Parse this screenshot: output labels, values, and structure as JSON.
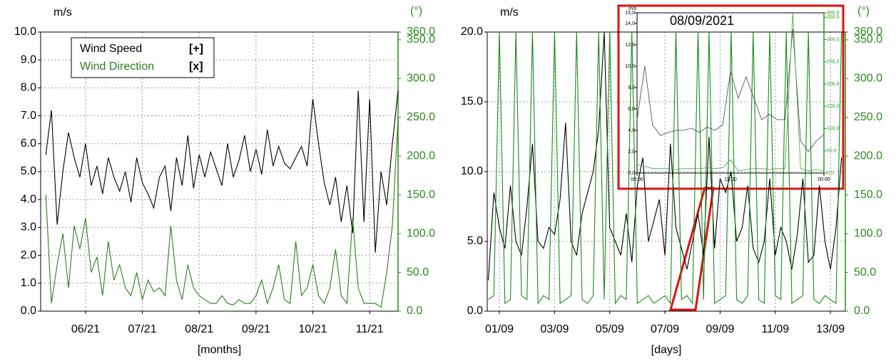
{
  "chart_data": [
    {
      "type": "line",
      "y_unit": "m/s",
      "y2_unit": "(°)",
      "xlabel": "[months]",
      "grid": true,
      "legend": "upper left",
      "x": [
        5.3,
        5.4,
        5.5,
        5.6,
        5.7,
        5.8,
        5.9,
        6.0,
        6.1,
        6.2,
        6.3,
        6.4,
        6.5,
        6.6,
        6.7,
        6.8,
        6.9,
        7.0,
        7.1,
        7.2,
        7.3,
        7.4,
        7.5,
        7.6,
        7.7,
        7.8,
        7.9,
        8.0,
        8.1,
        8.2,
        8.3,
        8.4,
        8.5,
        8.6,
        8.7,
        8.8,
        8.9,
        9.0,
        9.1,
        9.2,
        9.3,
        9.4,
        9.5,
        9.6,
        9.7,
        9.8,
        9.9,
        10.0,
        10.1,
        10.2,
        10.3,
        10.4,
        10.5,
        10.6,
        10.7,
        10.8,
        10.9,
        11.0,
        11.1,
        11.2,
        11.3,
        11.4,
        11.5
      ],
      "xlim": [
        5.21,
        11.5
      ],
      "xticks": [
        {
          "value": 6,
          "label": "06/21"
        },
        {
          "value": 7,
          "label": "07/21"
        },
        {
          "value": 8,
          "label": "08/21"
        },
        {
          "value": 9,
          "label": "09/21"
        },
        {
          "value": 10,
          "label": "10/21"
        },
        {
          "value": 11,
          "label": "11/21"
        }
      ],
      "ylim": [
        0,
        10
      ],
      "yticks": [
        {
          "value": 0,
          "label": "0.0"
        },
        {
          "value": 1,
          "label": "1.0"
        },
        {
          "value": 2,
          "label": "2.0"
        },
        {
          "value": 3,
          "label": "3.0"
        },
        {
          "value": 4,
          "label": "4.0"
        },
        {
          "value": 5,
          "label": "5.0"
        },
        {
          "value": 6,
          "label": "6.0"
        },
        {
          "value": 7,
          "label": "7.0"
        },
        {
          "value": 8,
          "label": "8.0"
        },
        {
          "value": 9,
          "label": "9.0"
        },
        {
          "value": 10,
          "label": "10.0"
        }
      ],
      "y2lim": [
        0,
        360
      ],
      "y2ticks": [
        {
          "value": 0,
          "label": "0.0"
        },
        {
          "value": 50,
          "label": "50.0"
        },
        {
          "value": 100,
          "label": "100.0"
        },
        {
          "value": 150,
          "label": "150.0"
        },
        {
          "value": 200,
          "label": "200.0"
        },
        {
          "value": 250,
          "label": "250.0"
        },
        {
          "value": 300,
          "label": "300.0"
        },
        {
          "value": 350,
          "label": "350.0"
        },
        {
          "value": 360,
          "label": "360.0"
        }
      ],
      "series": [
        {
          "name": "Wind Speed",
          "marker_label": "[+]",
          "color": "#000000",
          "axis": "y",
          "values": [
            5.6,
            7.2,
            3.1,
            5.0,
            6.4,
            5.5,
            4.8,
            6.0,
            4.5,
            5.2,
            4.2,
            5.5,
            4.8,
            4.3,
            5.0,
            3.9,
            5.5,
            4.6,
            4.2,
            3.7,
            4.8,
            5.2,
            3.6,
            5.5,
            4.5,
            6.3,
            4.4,
            5.6,
            4.8,
            5.7,
            5.1,
            4.5,
            6.0,
            4.8,
            5.4,
            6.3,
            5.0,
            5.8,
            4.9,
            6.5,
            5.2,
            5.9,
            5.3,
            5.1,
            5.5,
            5.9,
            5.2,
            7.6,
            6.0,
            4.6,
            3.8,
            4.8,
            3.2,
            4.5,
            2.8,
            7.9,
            3.2,
            7.6,
            2.1,
            5.0,
            3.8,
            6.0,
            7.9
          ]
        },
        {
          "name": "Wind Direction",
          "marker_label": "[x]",
          "color": "#2e7d1e",
          "axis": "y2",
          "values": [
            150,
            10,
            60,
            100,
            30,
            110,
            80,
            120,
            50,
            70,
            20,
            90,
            40,
            60,
            30,
            20,
            50,
            15,
            40,
            25,
            30,
            20,
            110,
            40,
            15,
            60,
            30,
            20,
            15,
            10,
            10,
            20,
            10,
            8,
            15,
            10,
            10,
            20,
            40,
            10,
            30,
            60,
            15,
            10,
            90,
            20,
            30,
            60,
            20,
            10,
            30,
            80,
            20,
            10,
            120,
            30,
            10,
            10,
            10,
            5,
            50,
            110,
            250
          ]
        }
      ]
    },
    {
      "type": "line",
      "y_unit": "m/s",
      "y2_unit": "(°)",
      "xlabel": "[days]",
      "grid": true,
      "x": [
        0.6,
        0.8,
        1.0,
        1.2,
        1.4,
        1.6,
        1.8,
        2.0,
        2.2,
        2.4,
        2.6,
        2.8,
        3.0,
        3.2,
        3.4,
        3.6,
        3.8,
        4.0,
        4.2,
        4.4,
        4.6,
        4.8,
        5.0,
        5.2,
        5.4,
        5.6,
        5.8,
        6.0,
        6.2,
        6.4,
        6.6,
        6.8,
        7.0,
        7.2,
        7.4,
        7.6,
        7.8,
        8.0,
        8.2,
        8.4,
        8.6,
        8.8,
        9.0,
        9.2,
        9.4,
        9.6,
        9.8,
        10.0,
        10.2,
        10.4,
        10.6,
        10.8,
        11.0,
        11.2,
        11.4,
        11.6,
        11.8,
        12.0,
        12.2,
        12.4,
        12.6,
        12.8,
        13.0,
        13.2,
        13.4
      ],
      "xlim": [
        0.56,
        13.54
      ],
      "xticks": [
        {
          "value": 1,
          "label": "01/09"
        },
        {
          "value": 3,
          "label": "03/09"
        },
        {
          "value": 5,
          "label": "05/09"
        },
        {
          "value": 7,
          "label": "07/09"
        },
        {
          "value": 9,
          "label": "09/09"
        },
        {
          "value": 11,
          "label": "11/09"
        },
        {
          "value": 13,
          "label": "13/09"
        }
      ],
      "ylim": [
        0,
        20
      ],
      "yticks": [
        {
          "value": 0,
          "label": "0.0"
        },
        {
          "value": 5,
          "label": "5.0"
        },
        {
          "value": 10,
          "label": "10.0"
        },
        {
          "value": 15,
          "label": "15.0"
        },
        {
          "value": 20,
          "label": "20.0"
        }
      ],
      "y2lim": [
        0,
        360
      ],
      "y2ticks": [
        {
          "value": 0,
          "label": "0.0"
        },
        {
          "value": 50,
          "label": "50.0"
        },
        {
          "value": 100,
          "label": "100.0"
        },
        {
          "value": 150,
          "label": "150.0"
        },
        {
          "value": 200,
          "label": "200.0"
        },
        {
          "value": 250,
          "label": "250.0"
        },
        {
          "value": 300,
          "label": "300.0"
        },
        {
          "value": 350,
          "label": "350.0"
        },
        {
          "value": 360,
          "label": "360.0"
        }
      ],
      "series": [
        {
          "color": "#000000",
          "axis": "y",
          "values": [
            2.2,
            8.5,
            6,
            4.5,
            9,
            5,
            4,
            7.5,
            12,
            5,
            4.5,
            6,
            5.5,
            8,
            13.5,
            5,
            4,
            7,
            8.5,
            10,
            13,
            20,
            6,
            5,
            4,
            7,
            3.5,
            9,
            11,
            5,
            6.5,
            8,
            4,
            12,
            6,
            4.5,
            3,
            5,
            7,
            4,
            12.5,
            4.5,
            9.5,
            8.5,
            10,
            5,
            6,
            9,
            4.5,
            3.5,
            5,
            9.5,
            4,
            6,
            5,
            3,
            5.5,
            9.5,
            3.5,
            4,
            9,
            5,
            3,
            6,
            11
          ]
        },
        {
          "color": "#1a8a1a",
          "axis": "y2",
          "values": [
            15,
            20,
            360,
            10,
            15,
            360,
            20,
            15,
            360,
            10,
            20,
            15,
            360,
            10,
            15,
            20,
            360,
            15,
            10,
            20,
            360,
            15,
            360,
            10,
            20,
            15,
            360,
            10,
            15,
            20,
            10,
            15,
            20,
            10,
            360,
            15,
            20,
            10,
            360,
            15,
            360,
            10,
            15,
            20,
            360,
            15,
            10,
            20,
            360,
            15,
            10,
            360,
            20,
            15,
            360,
            10,
            15,
            20,
            360,
            15,
            10,
            20,
            15,
            10,
            360
          ]
        }
      ]
    },
    {
      "type": "line",
      "title": "08/09/2021",
      "y_unit": "m/s",
      "grid": false,
      "x": [
        0,
        1,
        2,
        3,
        4,
        5,
        6,
        7,
        8,
        9,
        10,
        11,
        12,
        13,
        14,
        15,
        16,
        17,
        18,
        19,
        20,
        21,
        22,
        23,
        24
      ],
      "xlim": [
        0,
        24
      ],
      "xticks": [
        {
          "value": 0,
          "label": "00:00"
        },
        {
          "value": 12,
          "label": "12:00"
        },
        {
          "value": 24,
          "label": "00:00"
        }
      ],
      "ylim": [
        0,
        15
      ],
      "yticks": [
        {
          "value": 0,
          "label": "0,0"
        },
        {
          "value": 2,
          "label": "2,0"
        },
        {
          "value": 4,
          "label": "4,0"
        },
        {
          "value": 6,
          "label": "6,0"
        },
        {
          "value": 8,
          "label": "8,0"
        },
        {
          "value": 10,
          "label": "10,0"
        },
        {
          "value": 12,
          "label": "12,0"
        },
        {
          "value": 14,
          "label": "14,0"
        },
        {
          "value": 15,
          "label": "15,0"
        }
      ],
      "y2lim": [
        0,
        360
      ],
      "y2ticks": [
        {
          "value": 0,
          "label": "0,0"
        },
        {
          "value": 50,
          "label": "50,0"
        },
        {
          "value": 100,
          "label": "100,0"
        },
        {
          "value": 150,
          "label": "150,0"
        },
        {
          "value": 200,
          "label": "200,0"
        },
        {
          "value": 250,
          "label": "250,0"
        },
        {
          "value": 300,
          "label": "300,0"
        },
        {
          "value": 350,
          "label": "350,0"
        },
        {
          "value": 360,
          "label": "360,0"
        }
      ],
      "series": [
        {
          "color": "#444444",
          "axis": "y",
          "values": [
            5,
            10,
            4.5,
            3.5,
            3.8,
            4,
            4,
            4.2,
            3.8,
            4.3,
            4,
            4.5,
            9.5,
            7,
            9,
            7,
            5,
            5.5,
            5,
            5,
            13.5,
            3,
            2,
            3,
            3.6
          ]
        },
        {
          "color": "#3aa83a",
          "axis": "y2",
          "values": [
            20,
            15,
            10,
            10,
            10,
            8,
            10,
            10,
            10,
            12,
            10,
            12,
            30,
            5,
            8,
            10,
            10,
            8,
            10,
            10,
            360,
            10,
            5,
            8,
            5
          ]
        }
      ]
    }
  ]
}
